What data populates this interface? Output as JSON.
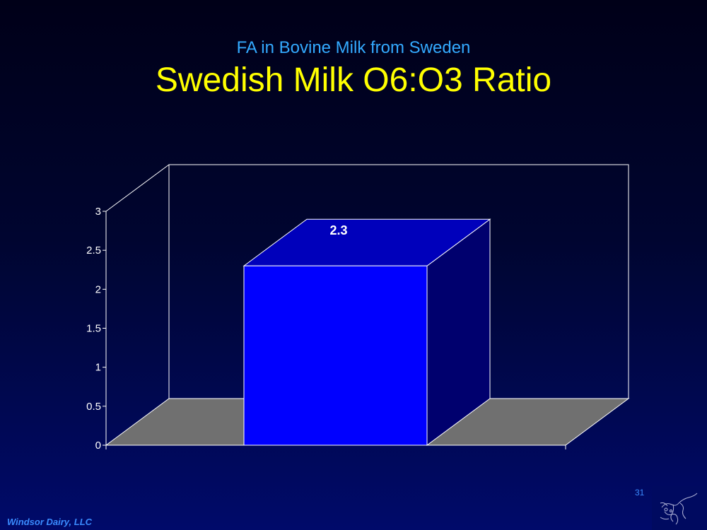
{
  "slide": {
    "subtitle": "FA in Bovine Milk from Sweden",
    "title": "Swedish Milk O6:O3 Ratio",
    "page_number": "31",
    "footer": "Windsor Dairy, LLC"
  },
  "colors": {
    "background": "#000530",
    "title": "#ffff00",
    "subtitle": "#33aaff",
    "bar_front": "#0000ff",
    "bar_top": "#0000bb",
    "bar_side": "#00006e",
    "floor": "#707070",
    "lines": "#ffffff"
  },
  "chart_data": {
    "type": "bar",
    "style": "3d",
    "categories": [
      ""
    ],
    "values": [
      2.3
    ],
    "data_labels": [
      "2.3"
    ],
    "ylim": [
      0,
      3
    ],
    "yticks": [
      0,
      0.5,
      1,
      1.5,
      2,
      2.5,
      3
    ],
    "ytick_labels": [
      "0",
      "0.5",
      "1",
      "1.5",
      "2",
      "2.5",
      "3"
    ],
    "grid": false,
    "legend": "none"
  }
}
